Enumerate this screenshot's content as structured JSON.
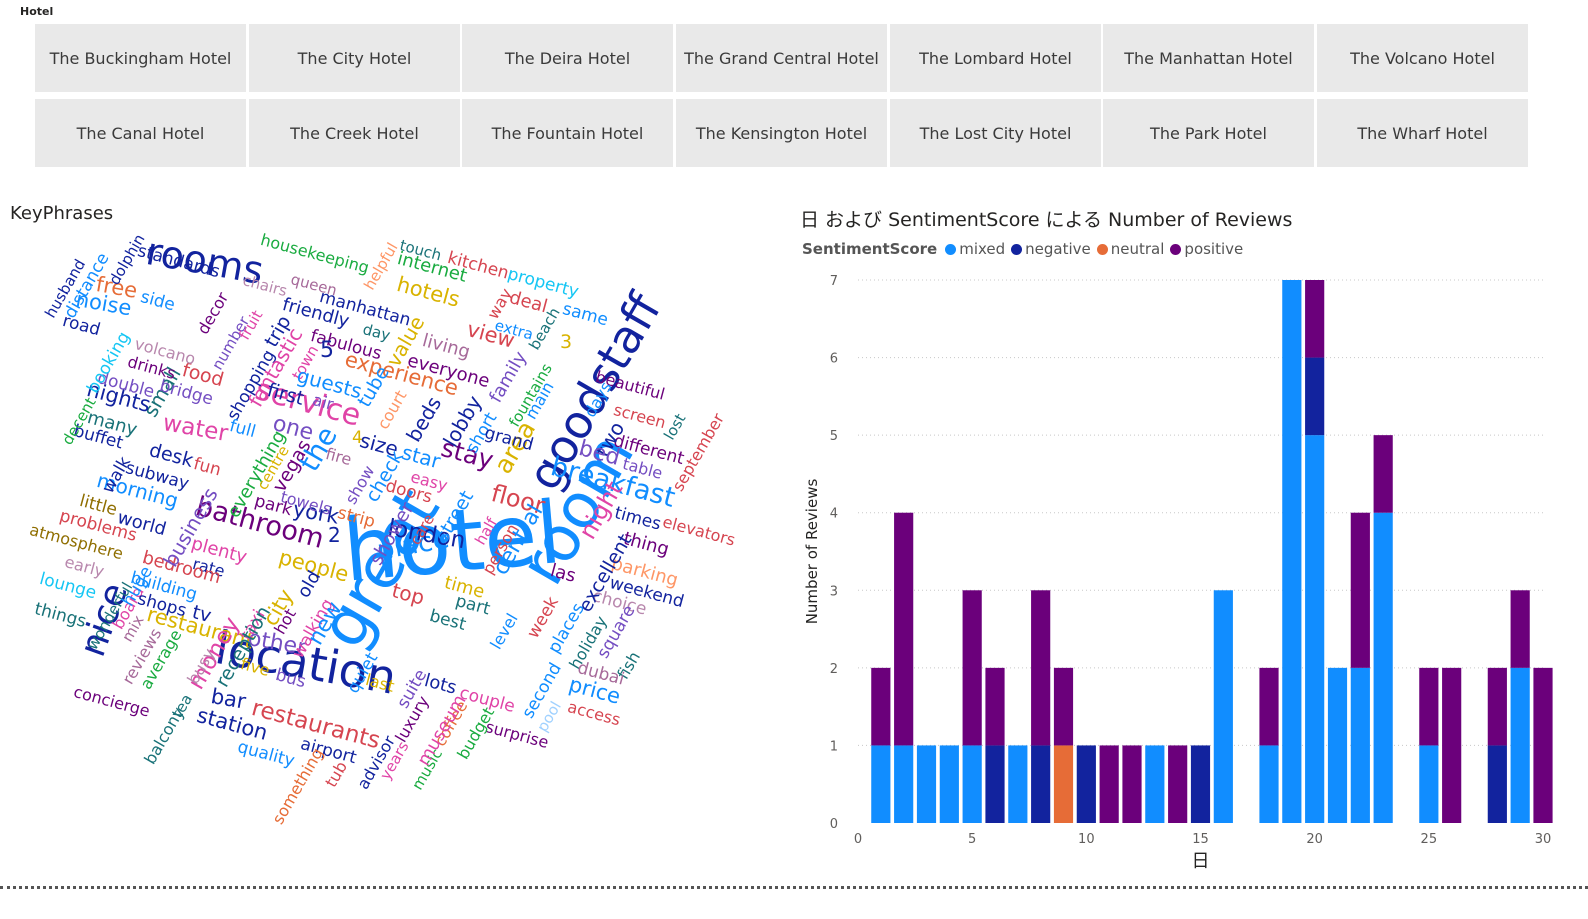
{
  "slicer": {
    "title": "Hotel",
    "rows": [
      [
        "The Buckingham Hotel",
        "The City Hotel",
        "The Deira Hotel",
        "The Grand Central Hotel",
        "The Lombard Hotel",
        "The Manhattan Hotel",
        "The Volcano Hotel"
      ],
      [
        "The Canal Hotel",
        "The Creek Hotel",
        "The Fountain Hotel",
        "The Kensington Hotel",
        "The Lost City Hotel",
        "The Park Hotel",
        "The Wharf Hotel"
      ]
    ]
  },
  "wordcloud": {
    "title": "KeyPhrases",
    "words": [
      {
        "t": "hotel",
        "c": "#118dff",
        "r": -5
      },
      {
        "t": "great",
        "c": "#118dff",
        "r": -60
      },
      {
        "t": "room",
        "c": "#118dff",
        "r": -60
      },
      {
        "t": "goodstaff",
        "c": "#12239e",
        "r": -60
      },
      {
        "t": "location",
        "c": "#12239e",
        "r": 10
      },
      {
        "t": "rooms",
        "c": "#12239e",
        "r": 10
      },
      {
        "t": "nice",
        "c": "#12239e",
        "r": -70
      },
      {
        "t": "breakfast",
        "c": "#118dff",
        "r": 15
      },
      {
        "t": "bathroom",
        "c": "#6b007b",
        "r": 15
      },
      {
        "t": "service",
        "c": "#e044a7",
        "r": 15
      },
      {
        "t": "place",
        "c": "#118dff",
        "r": -10
      },
      {
        "t": "restaurants",
        "c": "#d64550",
        "r": 15
      },
      {
        "t": "london",
        "c": "#12239e",
        "r": 10
      },
      {
        "t": "floor",
        "c": "#d64550",
        "r": 15
      },
      {
        "t": "restaurant",
        "c": "#d9b300",
        "r": 15
      },
      {
        "t": "experience",
        "c": "#e66c37",
        "r": 15
      },
      {
        "t": "water",
        "c": "#e044a7",
        "r": 10
      },
      {
        "t": "stay",
        "c": "#6b007b",
        "r": 15
      },
      {
        "t": "area",
        "c": "#d9b300",
        "r": -60
      },
      {
        "t": "york",
        "c": "#12239e",
        "r": 10
      },
      {
        "t": "people",
        "c": "#d9b300",
        "r": 15
      },
      {
        "t": "night",
        "c": "#e044a7",
        "r": -60
      },
      {
        "t": "price",
        "c": "#118dff",
        "r": 15
      },
      {
        "t": "money",
        "c": "#e044a7",
        "r": -60
      },
      {
        "t": "other",
        "c": "#744ec2",
        "r": 10
      },
      {
        "t": "central",
        "c": "#118dff",
        "r": -60
      },
      {
        "t": "noise",
        "c": "#118dff",
        "r": 10
      },
      {
        "t": "free",
        "c": "#e66c37",
        "r": 10
      },
      {
        "t": "standards",
        "c": "#12239e",
        "r": 15
      },
      {
        "t": "housekeeping",
        "c": "#1aab40",
        "r": 15
      },
      {
        "t": "internet",
        "c": "#1aab40",
        "r": 15
      },
      {
        "t": "hotels",
        "c": "#d9b300",
        "r": 15
      },
      {
        "t": "kitchen",
        "c": "#d64550",
        "r": 15
      },
      {
        "t": "property",
        "c": "#15c6f4",
        "r": 15
      },
      {
        "t": "touch",
        "c": "#197278",
        "r": 15
      },
      {
        "t": "manhattan",
        "c": "#12239e",
        "r": 15
      },
      {
        "t": "queen",
        "c": "#a66999",
        "r": 15
      },
      {
        "t": "chairs",
        "c": "#b887ad",
        "r": 15
      },
      {
        "t": "helpful",
        "c": "#fe9666",
        "r": -60
      },
      {
        "t": "friendly",
        "c": "#12239e",
        "r": 15
      },
      {
        "t": "day",
        "c": "#197278",
        "r": 15
      },
      {
        "t": "fabulous",
        "c": "#6b007b",
        "r": 15
      },
      {
        "t": "living",
        "c": "#a66999",
        "r": 15
      },
      {
        "t": "everyone",
        "c": "#6b007b",
        "r": 15
      },
      {
        "t": "view",
        "c": "#d64550",
        "r": 15
      },
      {
        "t": "way",
        "c": "#d64550",
        "r": -60
      },
      {
        "t": "deal",
        "c": "#d64550",
        "r": 15
      },
      {
        "t": "extra",
        "c": "#118dff",
        "r": 15
      },
      {
        "t": "same",
        "c": "#118dff",
        "r": 15
      },
      {
        "t": "beach",
        "c": "#197278",
        "r": -60
      },
      {
        "t": "3",
        "c": "#d9b300",
        "r": 0
      },
      {
        "t": "beautiful",
        "c": "#6b007b",
        "r": 15
      },
      {
        "t": "family",
        "c": "#744ec2",
        "r": -60
      },
      {
        "t": "fountains",
        "c": "#1aab40",
        "r": -60
      },
      {
        "t": "main",
        "c": "#118dff",
        "r": -60
      },
      {
        "t": "days",
        "c": "#118dff",
        "r": -60
      },
      {
        "t": "screen",
        "c": "#d64550",
        "r": 15
      },
      {
        "t": "lost",
        "c": "#197278",
        "r": -60
      },
      {
        "t": "different",
        "c": "#6b007b",
        "r": 15
      },
      {
        "t": "table",
        "c": "#744ec2",
        "r": 15
      },
      {
        "t": "two",
        "c": "#12239e",
        "r": -60
      },
      {
        "t": "bed",
        "c": "#744ec2",
        "r": 15
      },
      {
        "t": "september",
        "c": "#d64550",
        "r": -60
      },
      {
        "t": "elevators",
        "c": "#d64550",
        "r": 15
      },
      {
        "t": "times",
        "c": "#12239e",
        "r": 15
      },
      {
        "t": "thing",
        "c": "#6b007b",
        "r": 15
      },
      {
        "t": "parking",
        "c": "#fe9666",
        "r": 15
      },
      {
        "t": "weekend",
        "c": "#12239e",
        "r": 15
      },
      {
        "t": "choice",
        "c": "#b887ad",
        "r": 15
      },
      {
        "t": "excellent",
        "c": "#12239e",
        "r": -60
      },
      {
        "t": "las",
        "c": "#6b007b",
        "r": 15
      },
      {
        "t": "holiday",
        "c": "#197278",
        "r": -60
      },
      {
        "t": "places",
        "c": "#118dff",
        "r": -60
      },
      {
        "t": "square",
        "c": "#744ec2",
        "r": -60
      },
      {
        "t": "fish",
        "c": "#197278",
        "r": -60
      },
      {
        "t": "dubai",
        "c": "#a66999",
        "r": 15
      },
      {
        "t": "access",
        "c": "#d64550",
        "r": 15
      },
      {
        "t": "week",
        "c": "#d64550",
        "r": -60
      },
      {
        "t": "second",
        "c": "#118dff",
        "r": -60
      },
      {
        "t": "pool",
        "c": "#a0d1ff",
        "r": -60
      },
      {
        "t": "surprise",
        "c": "#6b007b",
        "r": 15
      },
      {
        "t": "couple",
        "c": "#e044a7",
        "r": 15
      },
      {
        "t": "level",
        "c": "#118dff",
        "r": -60
      },
      {
        "t": "part",
        "c": "#197278",
        "r": 15
      },
      {
        "t": "best",
        "c": "#197278",
        "r": 15
      },
      {
        "t": "time",
        "c": "#d9b300",
        "r": 15
      },
      {
        "t": "lots",
        "c": "#12239e",
        "r": 15
      },
      {
        "t": "budget",
        "c": "#1aab40",
        "r": -60
      },
      {
        "t": "coffee",
        "c": "#e66c37",
        "r": -60
      },
      {
        "t": "music",
        "c": "#1aab40",
        "r": -60
      },
      {
        "t": "museum",
        "c": "#e044a7",
        "r": -60
      },
      {
        "t": "luxury",
        "c": "#6b007b",
        "r": -60
      },
      {
        "t": "years",
        "c": "#e044a7",
        "r": -60
      },
      {
        "t": "advisor",
        "c": "#12239e",
        "r": -60
      },
      {
        "t": "suite",
        "c": "#744ec2",
        "r": -60
      },
      {
        "t": "last",
        "c": "#d9b300",
        "r": 15
      },
      {
        "t": "quiet",
        "c": "#118dff",
        "r": -60
      },
      {
        "t": "airport",
        "c": "#12239e",
        "r": 15
      },
      {
        "t": "tub",
        "c": "#d64550",
        "r": -60
      },
      {
        "t": "something",
        "c": "#e66c37",
        "r": -60
      },
      {
        "t": "quality",
        "c": "#118dff",
        "r": 15
      },
      {
        "t": "station",
        "c": "#12239e",
        "r": 15
      },
      {
        "t": "bar",
        "c": "#12239e",
        "r": 10
      },
      {
        "t": "bus",
        "c": "#744ec2",
        "r": 15
      },
      {
        "t": "five",
        "c": "#d9b300",
        "r": 15
      },
      {
        "t": "hot",
        "c": "#6b007b",
        "r": -60
      },
      {
        "t": "walking",
        "c": "#e044a7",
        "r": -60
      },
      {
        "t": "old",
        "c": "#12239e",
        "r": -60
      },
      {
        "t": "new",
        "c": "#118dff",
        "r": -60
      },
      {
        "t": "city",
        "c": "#d9b300",
        "r": -60
      },
      {
        "t": "taxi",
        "c": "#e044a7",
        "r": -60
      },
      {
        "t": "reception",
        "c": "#197278",
        "r": -60
      },
      {
        "t": "tv",
        "c": "#12239e",
        "r": 15
      },
      {
        "t": "busy",
        "c": "#b887ad",
        "r": -60
      },
      {
        "t": "tea",
        "c": "#197278",
        "r": -60
      },
      {
        "t": "balcony",
        "c": "#197278",
        "r": -60
      },
      {
        "t": "average",
        "c": "#1aab40",
        "r": -60
      },
      {
        "t": "reviews",
        "c": "#a66999",
        "r": -60
      },
      {
        "t": "concierge",
        "c": "#6b007b",
        "r": 15
      },
      {
        "t": "board",
        "c": "#e044a7",
        "r": -60
      },
      {
        "t": "mix",
        "c": "#a66999",
        "r": -60
      },
      {
        "t": "wonderful",
        "c": "#197278",
        "r": -60
      },
      {
        "t": "huge",
        "c": "#118dff",
        "r": -60
      },
      {
        "t": "shops",
        "c": "#12239e",
        "r": 15
      },
      {
        "t": "building",
        "c": "#118dff",
        "r": 15
      },
      {
        "t": "rate",
        "c": "#12239e",
        "r": 15
      },
      {
        "t": "bedroom",
        "c": "#d64550",
        "r": 15
      },
      {
        "t": "plenty",
        "c": "#e044a7",
        "r": 15
      },
      {
        "t": "things",
        "c": "#197278",
        "r": 15
      },
      {
        "t": "lounge",
        "c": "#15c6f4",
        "r": 15
      },
      {
        "t": "early",
        "c": "#b887ad",
        "r": 15
      },
      {
        "t": "atmosphere",
        "c": "#8f6e00",
        "r": 15
      },
      {
        "t": "problems",
        "c": "#d64550",
        "r": 15
      },
      {
        "t": "world",
        "c": "#12239e",
        "r": 15
      },
      {
        "t": "little",
        "c": "#8f6e00",
        "r": 15
      },
      {
        "t": "business",
        "c": "#744ec2",
        "r": -60
      },
      {
        "t": "morning",
        "c": "#118dff",
        "r": 15
      },
      {
        "t": "walk",
        "c": "#12239e",
        "r": -60
      },
      {
        "t": "subway",
        "c": "#12239e",
        "r": 15
      },
      {
        "t": "fun",
        "c": "#d64550",
        "r": 15
      },
      {
        "t": "desk",
        "c": "#12239e",
        "r": 15
      },
      {
        "t": "buffet",
        "c": "#12239e",
        "r": 15
      },
      {
        "t": "many",
        "c": "#197278",
        "r": 15
      },
      {
        "t": "decent",
        "c": "#1aab40",
        "r": -60
      },
      {
        "t": "small",
        "c": "#197278",
        "r": -60
      },
      {
        "t": "nights",
        "c": "#12239e",
        "r": 15
      },
      {
        "t": "double",
        "c": "#744ec2",
        "r": 15
      },
      {
        "t": "bridge",
        "c": "#744ec2",
        "r": 15
      },
      {
        "t": "booking",
        "c": "#15c6f4",
        "r": -60
      },
      {
        "t": "drinks",
        "c": "#6b007b",
        "r": 15
      },
      {
        "t": "food",
        "c": "#d64550",
        "r": 15
      },
      {
        "t": "volcano",
        "c": "#b887ad",
        "r": 15
      },
      {
        "t": "road",
        "c": "#12239e",
        "r": 15
      },
      {
        "t": "husband",
        "c": "#12239e",
        "r": -60
      },
      {
        "t": "distance",
        "c": "#118dff",
        "r": -60
      },
      {
        "t": "dolphin",
        "c": "#12239e",
        "r": -60
      },
      {
        "t": "side",
        "c": "#118dff",
        "r": 15
      },
      {
        "t": "decor",
        "c": "#6b007b",
        "r": -60
      },
      {
        "t": "number",
        "c": "#744ec2",
        "r": -60
      },
      {
        "t": "fruit",
        "c": "#e044a7",
        "r": -60
      },
      {
        "t": "shopping",
        "c": "#12239e",
        "r": -60
      },
      {
        "t": "fantastic",
        "c": "#e044a7",
        "r": -60
      },
      {
        "t": "trip",
        "c": "#12239e",
        "r": -60
      },
      {
        "t": "town",
        "c": "#e044a7",
        "r": -60
      },
      {
        "t": "first",
        "c": "#12239e",
        "r": 15
      },
      {
        "t": "air",
        "c": "#744ec2",
        "r": 15
      },
      {
        "t": "5",
        "c": "#12239e",
        "r": 0
      },
      {
        "t": "guests",
        "c": "#118dff",
        "r": 15
      },
      {
        "t": "value",
        "c": "#d9b300",
        "r": -60
      },
      {
        "t": "tube",
        "c": "#118dff",
        "r": -60
      },
      {
        "t": "court",
        "c": "#fe9666",
        "r": -60
      },
      {
        "t": "beds",
        "c": "#12239e",
        "r": -60
      },
      {
        "t": "lobby",
        "c": "#12239e",
        "r": -60
      },
      {
        "t": "short",
        "c": "#118dff",
        "r": -60
      },
      {
        "t": "grand",
        "c": "#12239e",
        "r": 15
      },
      {
        "t": "full",
        "c": "#118dff",
        "r": 15
      },
      {
        "t": "one",
        "c": "#744ec2",
        "r": 15
      },
      {
        "t": "4",
        "c": "#d9b300",
        "r": 0
      },
      {
        "t": "size",
        "c": "#12239e",
        "r": 15
      },
      {
        "t": "star",
        "c": "#118dff",
        "r": 15
      },
      {
        "t": "everything",
        "c": "#1aab40",
        "r": -60
      },
      {
        "t": "centre",
        "c": "#d9b300",
        "r": -60
      },
      {
        "t": "vegas",
        "c": "#6b007b",
        "r": -60
      },
      {
        "t": "the",
        "c": "#118dff",
        "r": -60
      },
      {
        "t": "fire",
        "c": "#a66999",
        "r": 15
      },
      {
        "t": "show",
        "c": "#744ec2",
        "r": -60
      },
      {
        "t": "check",
        "c": "#118dff",
        "r": -60
      },
      {
        "t": "easy",
        "c": "#e044a7",
        "r": 15
      },
      {
        "t": "doors",
        "c": "#d64550",
        "r": 15
      },
      {
        "t": "park",
        "c": "#6b007b",
        "r": 15
      },
      {
        "t": "towels",
        "c": "#744ec2",
        "r": 15
      },
      {
        "t": "strip",
        "c": "#e66c37",
        "r": 15
      },
      {
        "t": "2",
        "c": "#12239e",
        "r": 0
      },
      {
        "t": "shower",
        "c": "#744ec2",
        "r": -60
      },
      {
        "t": "care",
        "c": "#d64550",
        "r": -60
      },
      {
        "t": "street",
        "c": "#118dff",
        "r": -60
      },
      {
        "t": "half",
        "c": "#e044a7",
        "r": -60
      },
      {
        "t": "person",
        "c": "#d64550",
        "r": -60
      },
      {
        "t": "top",
        "c": "#d64550",
        "r": 15
      }
    ]
  },
  "chart": {
    "title": "日 および SentimentScore による Number of Reviews",
    "legend_title": "SentimentScore",
    "series_colors": {
      "mixed": "#118dff",
      "negative": "#12239e",
      "neutral": "#e66c37",
      "positive": "#6b007b"
    }
  },
  "chart_data": {
    "type": "bar",
    "stacked": true,
    "title": "日 および SentimentScore による Number of Reviews",
    "xlabel": "日",
    "ylabel": "Number of Reviews",
    "xlim": [
      0,
      30
    ],
    "ylim": [
      0,
      7
    ],
    "x_ticks": [
      0,
      5,
      10,
      15,
      20,
      25,
      30
    ],
    "y_ticks": [
      0,
      1,
      2,
      3,
      4,
      5,
      6,
      7
    ],
    "legend_position": "top-left",
    "grid": true,
    "x": [
      1,
      2,
      3,
      4,
      5,
      6,
      7,
      8,
      9,
      10,
      11,
      12,
      13,
      14,
      15,
      16,
      17,
      18,
      19,
      20,
      21,
      22,
      23,
      24,
      25,
      26,
      27,
      28,
      29,
      30
    ],
    "series": [
      {
        "name": "mixed",
        "values": [
          1,
          1,
          1,
          1,
          1,
          0,
          1,
          0,
          0,
          0,
          0,
          0,
          1,
          0,
          0,
          3,
          0,
          1,
          7,
          5,
          2,
          2,
          4,
          0,
          1,
          0,
          0,
          0,
          2,
          0
        ],
        "color": "#118dff"
      },
      {
        "name": "negative",
        "values": [
          0,
          0,
          0,
          0,
          0,
          1,
          0,
          1,
          0,
          1,
          0,
          0,
          0,
          0,
          1,
          0,
          0,
          0,
          0,
          1,
          0,
          0,
          0,
          0,
          0,
          0,
          0,
          1,
          0,
          0
        ],
        "color": "#12239e"
      },
      {
        "name": "neutral",
        "values": [
          0,
          0,
          0,
          0,
          0,
          0,
          0,
          0,
          1,
          0,
          0,
          0,
          0,
          0,
          0,
          0,
          0,
          0,
          0,
          0,
          0,
          0,
          0,
          0,
          0,
          0,
          0,
          0,
          0,
          0
        ],
        "color": "#e66c37"
      },
      {
        "name": "positive",
        "values": [
          1,
          3,
          0,
          0,
          2,
          1,
          0,
          2,
          1,
          0,
          1,
          1,
          0,
          1,
          0,
          0,
          0,
          1,
          0,
          1,
          0,
          2,
          1,
          0,
          1,
          2,
          0,
          1,
          1,
          2
        ],
        "color": "#6b007b"
      }
    ]
  }
}
